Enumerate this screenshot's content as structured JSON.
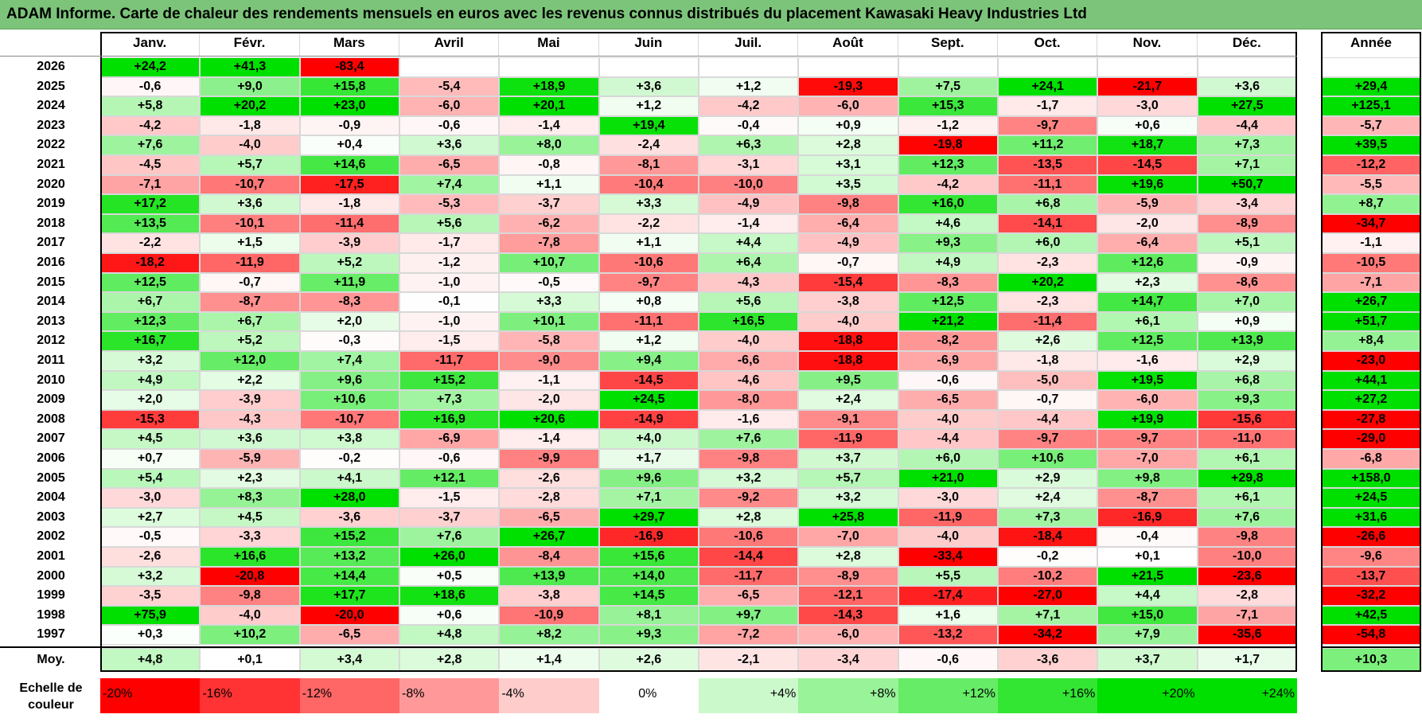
{
  "title": "ADAM Informe. Carte de chaleur des rendements mensuels en euros avec les revenus connus distribués du placement Kawasaki Heavy Industries Ltd",
  "colors": {
    "title_bg": "#7cc47a",
    "positive_max": "#00e000",
    "negative_max": "#ff0000",
    "neutral": "#ffffff"
  },
  "chart_data": {
    "type": "heatmap",
    "title": "ADAM Informe. Carte de chaleur des rendements mensuels en euros avec les revenus connus distribués du placement Kawasaki Heavy Industries Ltd",
    "months": [
      "Janv.",
      "Févr.",
      "Mars",
      "Avril",
      "Mai",
      "Juin",
      "Juil.",
      "Août",
      "Sept.",
      "Oct.",
      "Nov.",
      "Déc."
    ],
    "year_header": "Année",
    "rows": [
      {
        "year": "2026",
        "values": [
          "+24,2",
          "+41,3",
          "-83,4",
          "",
          "",
          "",
          "",
          "",
          "",
          "",
          "",
          ""
        ],
        "annual": ""
      },
      {
        "year": "2025",
        "values": [
          "-0,6",
          "+9,0",
          "+15,8",
          "-5,4",
          "+18,9",
          "+3,6",
          "+1,2",
          "-19,3",
          "+7,5",
          "+24,1",
          "-21,7",
          "+3,6"
        ],
        "annual": "+29,4"
      },
      {
        "year": "2024",
        "values": [
          "+5,8",
          "+20,2",
          "+23,0",
          "-6,0",
          "+20,1",
          "+1,2",
          "-4,2",
          "-6,0",
          "+15,3",
          "-1,7",
          "-3,0",
          "+27,5"
        ],
        "annual": "+125,1"
      },
      {
        "year": "2023",
        "values": [
          "-4,2",
          "-1,8",
          "-0,9",
          "-0,6",
          "-1,4",
          "+19,4",
          "-0,4",
          "+0,9",
          "-1,2",
          "-9,7",
          "+0,6",
          "-4,4"
        ],
        "annual": "-5,7"
      },
      {
        "year": "2022",
        "values": [
          "+7,6",
          "-4,0",
          "+0,4",
          "+3,6",
          "+8,0",
          "-2,4",
          "+6,3",
          "+2,8",
          "-19,8",
          "+11,2",
          "+18,7",
          "+7,3"
        ],
        "annual": "+39,5"
      },
      {
        "year": "2021",
        "values": [
          "-4,5",
          "+5,7",
          "+14,6",
          "-6,5",
          "-0,8",
          "-8,1",
          "-3,1",
          "+3,1",
          "+12,3",
          "-13,5",
          "-14,5",
          "+7,1"
        ],
        "annual": "-12,2"
      },
      {
        "year": "2020",
        "values": [
          "-7,1",
          "-10,7",
          "-17,5",
          "+7,4",
          "+1,1",
          "-10,4",
          "-10,0",
          "+3,5",
          "-4,2",
          "-11,1",
          "+19,6",
          "+50,7"
        ],
        "annual": "-5,5"
      },
      {
        "year": "2019",
        "values": [
          "+17,2",
          "+3,6",
          "-1,8",
          "-5,3",
          "-3,7",
          "+3,3",
          "-4,9",
          "-9,8",
          "+16,0",
          "+6,8",
          "-5,9",
          "-3,4"
        ],
        "annual": "+8,7"
      },
      {
        "year": "2018",
        "values": [
          "+13,5",
          "-10,1",
          "-11,4",
          "+5,6",
          "-6,2",
          "-2,2",
          "-1,4",
          "-6,4",
          "+4,6",
          "-14,1",
          "-2,0",
          "-8,9"
        ],
        "annual": "-34,7"
      },
      {
        "year": "2017",
        "values": [
          "-2,2",
          "+1,5",
          "-3,9",
          "-1,7",
          "-7,8",
          "+1,1",
          "+4,4",
          "-4,9",
          "+9,3",
          "+6,0",
          "-6,4",
          "+5,1"
        ],
        "annual": "-1,1"
      },
      {
        "year": "2016",
        "values": [
          "-18,2",
          "-11,9",
          "+5,2",
          "-1,2",
          "+10,7",
          "-10,6",
          "+6,4",
          "-0,7",
          "+4,9",
          "-2,3",
          "+12,6",
          "-0,9"
        ],
        "annual": "-10,5"
      },
      {
        "year": "2015",
        "values": [
          "+12,5",
          "-0,7",
          "+11,9",
          "-1,0",
          "-0,5",
          "-9,7",
          "-4,3",
          "-15,4",
          "-8,3",
          "+20,2",
          "+2,3",
          "-8,6"
        ],
        "annual": "-7,1"
      },
      {
        "year": "2014",
        "values": [
          "+6,7",
          "-8,7",
          "-8,3",
          "-0,1",
          "+3,3",
          "+0,8",
          "+5,6",
          "-3,8",
          "+12,5",
          "-2,3",
          "+14,7",
          "+7,0"
        ],
        "annual": "+26,7"
      },
      {
        "year": "2013",
        "values": [
          "+12,3",
          "+6,7",
          "+2,0",
          "-1,0",
          "+10,1",
          "-11,1",
          "+16,5",
          "-4,0",
          "+21,2",
          "-11,4",
          "+6,1",
          "+0,9"
        ],
        "annual": "+51,7"
      },
      {
        "year": "2012",
        "values": [
          "+16,7",
          "+5,2",
          "-0,3",
          "-1,5",
          "-5,8",
          "+1,2",
          "-4,0",
          "-18,8",
          "-8,2",
          "+2,6",
          "+12,5",
          "+13,9"
        ],
        "annual": "+8,4"
      },
      {
        "year": "2011",
        "values": [
          "+3,2",
          "+12,0",
          "+7,4",
          "-11,7",
          "-9,0",
          "+9,4",
          "-6,6",
          "-18,8",
          "-6,9",
          "-1,8",
          "-1,6",
          "+2,9"
        ],
        "annual": "-23,0"
      },
      {
        "year": "2010",
        "values": [
          "+4,9",
          "+2,2",
          "+9,6",
          "+15,2",
          "-1,1",
          "-14,5",
          "-4,6",
          "+9,5",
          "-0,6",
          "-5,0",
          "+19,5",
          "+6,8"
        ],
        "annual": "+44,1"
      },
      {
        "year": "2009",
        "values": [
          "+2,0",
          "-3,9",
          "+10,6",
          "+7,3",
          "-2,0",
          "+24,5",
          "-8,0",
          "+2,4",
          "-6,5",
          "-0,7",
          "-6,0",
          "+9,3"
        ],
        "annual": "+27,2"
      },
      {
        "year": "2008",
        "values": [
          "-15,3",
          "-4,3",
          "-10,7",
          "+16,9",
          "+20,6",
          "-14,9",
          "-1,6",
          "-9,1",
          "-4,0",
          "-4,4",
          "+19,9",
          "-15,6"
        ],
        "annual": "-27,8"
      },
      {
        "year": "2007",
        "values": [
          "+4,5",
          "+3,6",
          "+3,8",
          "-6,9",
          "-1,4",
          "+4,0",
          "+7,6",
          "-11,9",
          "-4,4",
          "-9,7",
          "-9,7",
          "-11,0"
        ],
        "annual": "-29,0"
      },
      {
        "year": "2006",
        "values": [
          "+0,7",
          "-5,9",
          "-0,2",
          "-0,6",
          "-9,9",
          "+1,7",
          "-9,8",
          "+3,7",
          "+6,0",
          "+10,6",
          "-7,0",
          "+6,1"
        ],
        "annual": "-6,8"
      },
      {
        "year": "2005",
        "values": [
          "+5,4",
          "+2,3",
          "+4,1",
          "+12,1",
          "-2,6",
          "+9,6",
          "+3,2",
          "+5,7",
          "+21,0",
          "+2,9",
          "+9,8",
          "+29,8"
        ],
        "annual": "+158,0"
      },
      {
        "year": "2004",
        "values": [
          "-3,0",
          "+8,3",
          "+28,0",
          "-1,5",
          "-2,8",
          "+7,1",
          "-9,2",
          "+3,2",
          "-3,0",
          "+2,4",
          "-8,7",
          "+6,1"
        ],
        "annual": "+24,5"
      },
      {
        "year": "2003",
        "values": [
          "+2,7",
          "+4,5",
          "-3,6",
          "-3,7",
          "-6,5",
          "+29,7",
          "+2,8",
          "+25,8",
          "-11,9",
          "+7,3",
          "-16,9",
          "+7,6"
        ],
        "annual": "+31,6"
      },
      {
        "year": "2002",
        "values": [
          "-0,5",
          "-3,3",
          "+15,2",
          "+7,6",
          "+26,7",
          "-16,9",
          "-10,6",
          "-7,0",
          "-4,0",
          "-18,4",
          "-0,4",
          "-9,8"
        ],
        "annual": "-26,6"
      },
      {
        "year": "2001",
        "values": [
          "-2,6",
          "+16,6",
          "+13,2",
          "+26,0",
          "-8,4",
          "+15,6",
          "-14,4",
          "+2,8",
          "-33,4",
          "-0,2",
          "+0,1",
          "-10,0"
        ],
        "annual": "-9,6"
      },
      {
        "year": "2000",
        "values": [
          "+3,2",
          "-20,8",
          "+14,4",
          "+0,5",
          "+13,9",
          "+14,0",
          "-11,7",
          "-8,9",
          "+5,5",
          "-10,2",
          "+21,5",
          "-23,6"
        ],
        "annual": "-13,7"
      },
      {
        "year": "1999",
        "values": [
          "-3,5",
          "-9,8",
          "+17,7",
          "+18,6",
          "-3,8",
          "+14,5",
          "-6,5",
          "-12,1",
          "-17,4",
          "-27,0",
          "+4,4",
          "-2,8"
        ],
        "annual": "-32,2"
      },
      {
        "year": "1998",
        "values": [
          "+75,9",
          "-4,0",
          "-20,0",
          "+0,6",
          "-10,9",
          "+8,1",
          "+9,7",
          "-14,3",
          "+1,6",
          "+7,1",
          "+15,0",
          "-7,1"
        ],
        "annual": "+42,5"
      },
      {
        "year": "1997",
        "values": [
          "+0,3",
          "+10,2",
          "-6,5",
          "+4,8",
          "+8,2",
          "+9,3",
          "-7,2",
          "-6,0",
          "-13,2",
          "-34,2",
          "+7,9",
          "-35,6"
        ],
        "annual": "-54,8"
      }
    ],
    "average": {
      "label": "Moy.",
      "values": [
        "+4,8",
        "+0,1",
        "+3,4",
        "+2,8",
        "+1,4",
        "+2,6",
        "-2,1",
        "-3,4",
        "-0,6",
        "-3,6",
        "+3,7",
        "+1,7"
      ],
      "annual": "+10,3"
    },
    "color_scale": {
      "label_line1": "Echelle de",
      "label_line2": "couleur",
      "stops": [
        {
          "label": "-20%",
          "value": -20
        },
        {
          "label": "-16%",
          "value": -16
        },
        {
          "label": "-12%",
          "value": -12
        },
        {
          "label": "-8%",
          "value": -8
        },
        {
          "label": "-4%",
          "value": -4
        },
        {
          "label": "0%",
          "value": 0
        },
        {
          "label": "+4%",
          "value": 4
        },
        {
          "label": "+8%",
          "value": 8
        },
        {
          "label": "+12%",
          "value": 12
        },
        {
          "label": "+16%",
          "value": 16
        },
        {
          "label": "+20%",
          "value": 20
        },
        {
          "label": "+24%",
          "value": 24
        }
      ]
    }
  }
}
